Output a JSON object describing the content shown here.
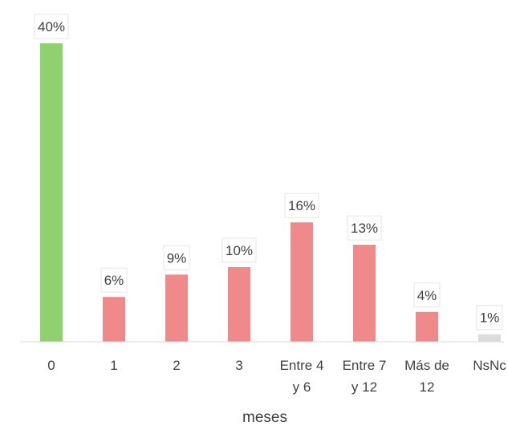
{
  "chart_data": {
    "type": "bar",
    "categories": [
      [
        "0"
      ],
      [
        "1"
      ],
      [
        "2"
      ],
      [
        "3"
      ],
      [
        "Entre 4",
        "y 6"
      ],
      [
        "Entre 7",
        "y 12"
      ],
      [
        "Más de",
        "12"
      ],
      [
        "NsNc"
      ]
    ],
    "values": [
      40,
      6,
      9,
      10,
      16,
      13,
      4,
      1
    ],
    "value_labels": [
      "40%",
      "6%",
      "9%",
      "10%",
      "16%",
      "13%",
      "4%",
      "1%"
    ],
    "bar_colors": [
      "#8fd16e",
      "#f08a8a",
      "#f08a8a",
      "#f08a8a",
      "#f08a8a",
      "#f08a8a",
      "#f08a8a",
      "#dcdcdc"
    ],
    "xlabel": "meses",
    "ylim": [
      0,
      40
    ],
    "unit": "%",
    "grid": false,
    "legend": false
  }
}
